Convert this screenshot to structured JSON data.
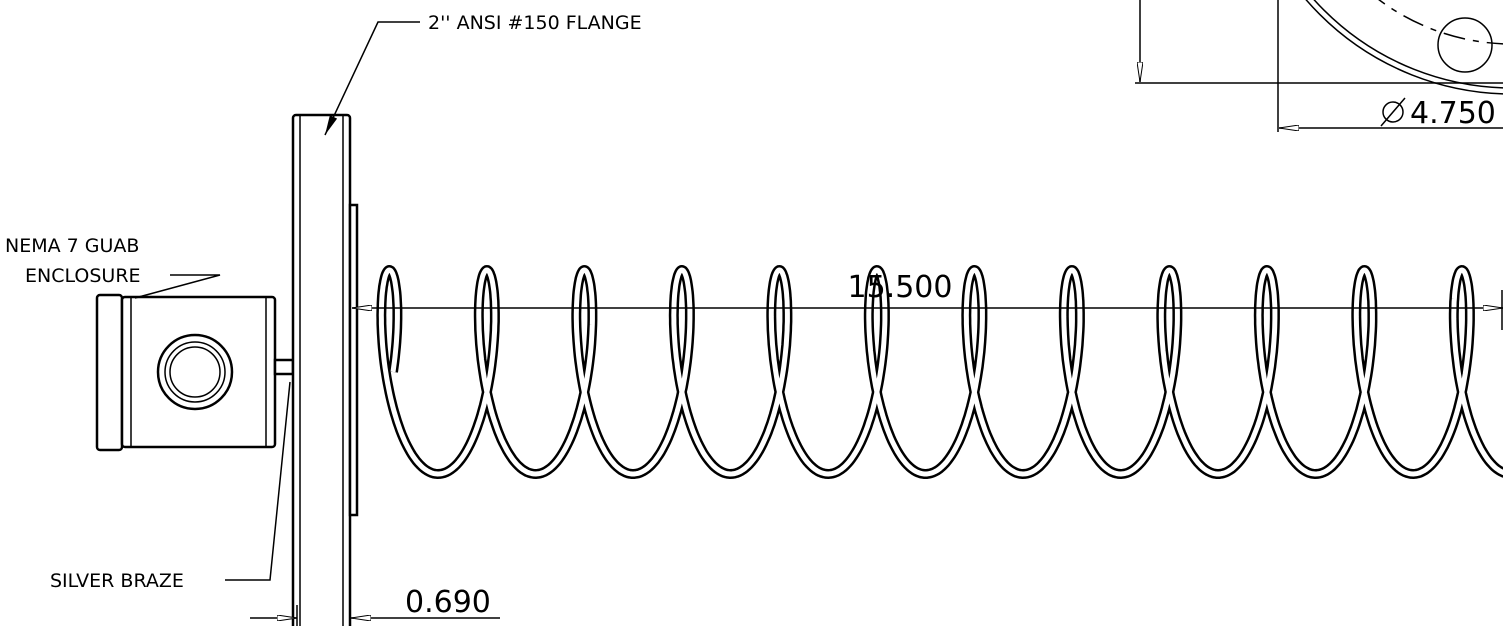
{
  "labels": {
    "flange": "2'' ANSI #150 FLANGE",
    "enclosure_line1": "NEMA 7 GUAB",
    "enclosure_line2": "ENCLOSURE",
    "braze": "SILVER BRAZE"
  },
  "dimensions": {
    "length": "15.500",
    "flange_thickness": "0.690",
    "diameter": "4.750"
  }
}
